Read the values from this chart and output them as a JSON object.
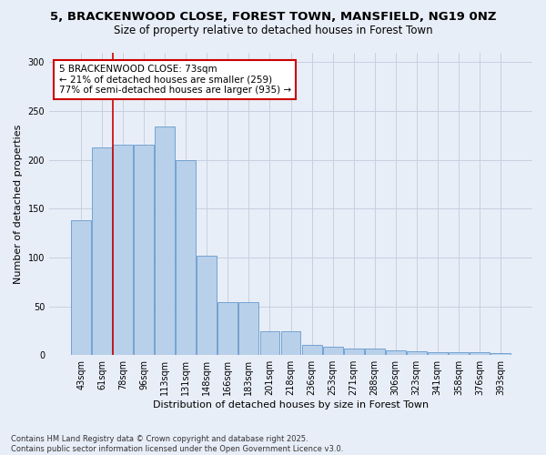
{
  "title": "5, BRACKENWOOD CLOSE, FOREST TOWN, MANSFIELD, NG19 0NZ",
  "subtitle": "Size of property relative to detached houses in Forest Town",
  "xlabel": "Distribution of detached houses by size in Forest Town",
  "ylabel": "Number of detached properties",
  "categories": [
    "43sqm",
    "61sqm",
    "78sqm",
    "96sqm",
    "113sqm",
    "131sqm",
    "148sqm",
    "166sqm",
    "183sqm",
    "201sqm",
    "218sqm",
    "236sqm",
    "253sqm",
    "271sqm",
    "288sqm",
    "306sqm",
    "323sqm",
    "341sqm",
    "358sqm",
    "376sqm",
    "393sqm"
  ],
  "values": [
    138,
    213,
    215,
    215,
    234,
    200,
    102,
    54,
    54,
    24,
    24,
    10,
    9,
    7,
    7,
    5,
    4,
    3,
    3,
    3,
    2
  ],
  "bar_color": "#b8d0ea",
  "bar_edge_color": "#6699cc",
  "annotation_text": "5 BRACKENWOOD CLOSE: 73sqm\n← 21% of detached houses are smaller (259)\n77% of semi-detached houses are larger (935) →",
  "annotation_box_color": "#ffffff",
  "annotation_box_edge": "#cc0000",
  "vline_x": 1.5,
  "vline_color": "#cc0000",
  "ylim": [
    0,
    310
  ],
  "yticks": [
    0,
    50,
    100,
    150,
    200,
    250,
    300
  ],
  "background_color": "#e8eef8",
  "grid_color": "#c8d0e0",
  "footnote": "Contains HM Land Registry data © Crown copyright and database right 2025.\nContains public sector information licensed under the Open Government Licence v3.0.",
  "title_fontsize": 9.5,
  "subtitle_fontsize": 8.5,
  "xlabel_fontsize": 8,
  "ylabel_fontsize": 8,
  "tick_fontsize": 7,
  "annot_fontsize": 7.5,
  "footnote_fontsize": 6
}
